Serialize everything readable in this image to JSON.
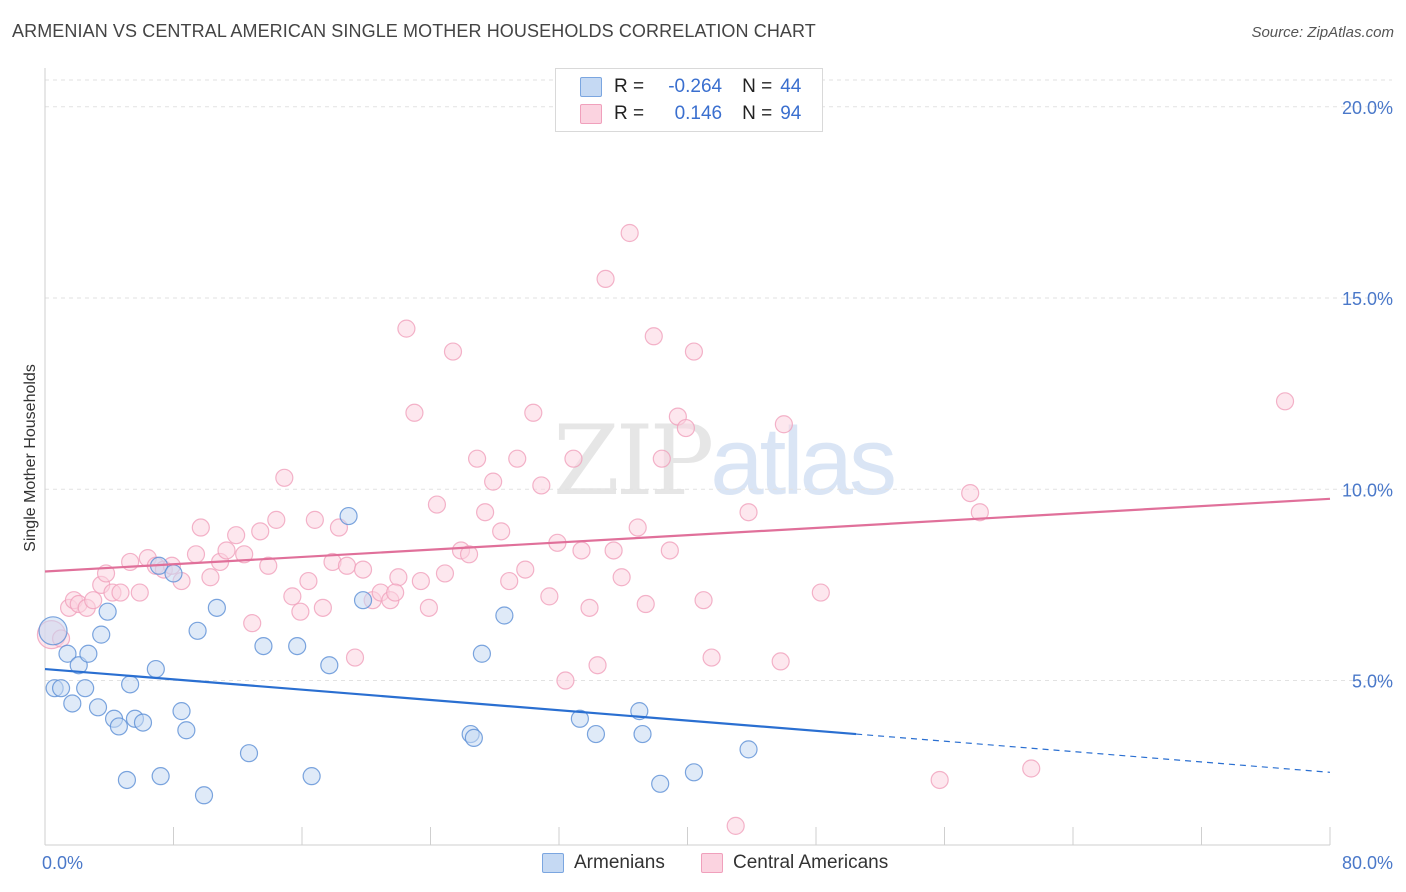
{
  "title": "ARMENIAN VS CENTRAL AMERICAN SINGLE MOTHER HOUSEHOLDS CORRELATION CHART",
  "source": "Source: ZipAtlas.com",
  "watermark": {
    "zip": "ZIP",
    "atlas": "atlas"
  },
  "legend": {
    "rows": [
      {
        "r_label": "R =",
        "r_value": "-0.264",
        "n_label": "N =",
        "n_value": "44",
        "color": "#7ba6e0",
        "fill": "#c5d9f3"
      },
      {
        "r_label": "R =",
        "r_value": "0.146",
        "n_label": "N =",
        "n_value": "94",
        "color": "#f0a0bc",
        "fill": "#fbd3e0"
      }
    ]
  },
  "bottom_legend": [
    {
      "label": "Armenians",
      "color": "#7ba6e0",
      "fill": "#c5d9f3"
    },
    {
      "label": "Central Americans",
      "color": "#f0a0bc",
      "fill": "#fbd3e0"
    }
  ],
  "chart_data": {
    "type": "scatter",
    "title": "ARMENIAN VS CENTRAL AMERICAN SINGLE MOTHER HOUSEHOLDS CORRELATION CHART",
    "ylabel": "Single Mother Households",
    "xlabel": "",
    "x_tick_labels": [
      "0.0%",
      "80.0%"
    ],
    "y_tick_labels": [
      "5.0%",
      "10.0%",
      "15.0%",
      "20.0%"
    ],
    "xlim": [
      0,
      80
    ],
    "ylim": [
      0.7,
      20.7
    ],
    "y_ticks": [
      5,
      10,
      15,
      20
    ],
    "grid": true,
    "series": [
      {
        "name": "Armenians",
        "color": "#5b8fd6",
        "fill": "#c5d9f3",
        "trend_color": "#2a6fd1",
        "trend": {
          "x0": 0,
          "y0": 5.3,
          "x1": 50.5,
          "y1": 3.6,
          "dash_to_x": 80,
          "dash_to_y": 2.6
        },
        "points": [
          [
            0.5,
            6.3
          ],
          [
            0.6,
            4.8
          ],
          [
            1.0,
            4.8
          ],
          [
            1.4,
            5.7
          ],
          [
            1.7,
            4.4
          ],
          [
            2.1,
            5.4
          ],
          [
            2.5,
            4.8
          ],
          [
            2.7,
            5.7
          ],
          [
            3.3,
            4.3
          ],
          [
            3.5,
            6.2
          ],
          [
            3.9,
            6.8
          ],
          [
            4.3,
            4.0
          ],
          [
            4.6,
            3.8
          ],
          [
            5.1,
            2.4
          ],
          [
            5.3,
            4.9
          ],
          [
            5.6,
            4.0
          ],
          [
            6.1,
            3.9
          ],
          [
            6.9,
            5.3
          ],
          [
            7.1,
            8.0
          ],
          [
            7.2,
            2.5
          ],
          [
            8.0,
            7.8
          ],
          [
            8.5,
            4.2
          ],
          [
            8.8,
            3.7
          ],
          [
            9.5,
            6.3
          ],
          [
            9.9,
            2.0
          ],
          [
            10.7,
            6.9
          ],
          [
            12.7,
            3.1
          ],
          [
            13.6,
            5.9
          ],
          [
            15.7,
            5.9
          ],
          [
            16.6,
            2.5
          ],
          [
            17.7,
            5.4
          ],
          [
            18.9,
            9.3
          ],
          [
            19.8,
            7.1
          ],
          [
            26.5,
            3.6
          ],
          [
            26.7,
            3.5
          ],
          [
            27.2,
            5.7
          ],
          [
            28.6,
            6.7
          ],
          [
            33.3,
            4.0
          ],
          [
            34.3,
            3.6
          ],
          [
            37.0,
            4.2
          ],
          [
            37.2,
            3.6
          ],
          [
            38.3,
            2.3
          ],
          [
            40.4,
            2.6
          ],
          [
            43.8,
            3.2
          ]
        ]
      },
      {
        "name": "Central Americans",
        "color": "#f0a0bc",
        "fill": "#fbd3e0",
        "trend_color": "#e0709a",
        "trend": {
          "x0": 0,
          "y0": 7.85,
          "x1": 80,
          "y1": 9.75
        },
        "points": [
          [
            0.4,
            6.2
          ],
          [
            1.0,
            6.1
          ],
          [
            1.5,
            6.9
          ],
          [
            1.8,
            7.1
          ],
          [
            2.1,
            7.0
          ],
          [
            2.6,
            6.9
          ],
          [
            3.0,
            7.1
          ],
          [
            3.5,
            7.5
          ],
          [
            3.8,
            7.8
          ],
          [
            4.2,
            7.3
          ],
          [
            4.7,
            7.3
          ],
          [
            5.3,
            8.1
          ],
          [
            5.9,
            7.3
          ],
          [
            6.4,
            8.2
          ],
          [
            6.9,
            8.0
          ],
          [
            7.4,
            7.9
          ],
          [
            7.9,
            8.0
          ],
          [
            8.5,
            7.6
          ],
          [
            9.4,
            8.3
          ],
          [
            9.7,
            9.0
          ],
          [
            10.3,
            7.7
          ],
          [
            10.9,
            8.1
          ],
          [
            11.3,
            8.4
          ],
          [
            11.9,
            8.8
          ],
          [
            12.4,
            8.3
          ],
          [
            12.9,
            6.5
          ],
          [
            13.4,
            8.9
          ],
          [
            13.9,
            8.0
          ],
          [
            14.4,
            9.2
          ],
          [
            14.9,
            10.3
          ],
          [
            15.4,
            7.2
          ],
          [
            15.9,
            6.8
          ],
          [
            16.4,
            7.6
          ],
          [
            16.8,
            9.2
          ],
          [
            17.3,
            6.9
          ],
          [
            17.9,
            8.1
          ],
          [
            18.3,
            9.0
          ],
          [
            18.8,
            8.0
          ],
          [
            19.3,
            5.6
          ],
          [
            19.8,
            7.9
          ],
          [
            20.4,
            7.1
          ],
          [
            20.9,
            7.3
          ],
          [
            21.5,
            7.1
          ],
          [
            22.0,
            7.7
          ],
          [
            22.5,
            14.2
          ],
          [
            23.0,
            12.0
          ],
          [
            23.4,
            7.6
          ],
          [
            23.9,
            6.9
          ],
          [
            24.4,
            9.6
          ],
          [
            24.9,
            7.8
          ],
          [
            25.4,
            13.6
          ],
          [
            25.9,
            8.4
          ],
          [
            26.4,
            8.3
          ],
          [
            26.9,
            10.8
          ],
          [
            27.4,
            9.4
          ],
          [
            27.9,
            10.2
          ],
          [
            28.4,
            8.9
          ],
          [
            28.9,
            7.6
          ],
          [
            29.4,
            10.8
          ],
          [
            29.9,
            7.9
          ],
          [
            30.4,
            12.0
          ],
          [
            30.9,
            10.1
          ],
          [
            31.4,
            7.2
          ],
          [
            31.9,
            8.6
          ],
          [
            32.4,
            5.0
          ],
          [
            32.9,
            10.8
          ],
          [
            33.4,
            8.4
          ],
          [
            33.9,
            6.9
          ],
          [
            34.4,
            5.4
          ],
          [
            34.9,
            15.5
          ],
          [
            35.4,
            8.4
          ],
          [
            35.9,
            7.7
          ],
          [
            36.4,
            16.7
          ],
          [
            36.9,
            9.0
          ],
          [
            37.4,
            7.0
          ],
          [
            37.9,
            14.0
          ],
          [
            38.4,
            10.8
          ],
          [
            38.9,
            8.4
          ],
          [
            39.4,
            11.9
          ],
          [
            39.9,
            11.6
          ],
          [
            40.4,
            13.6
          ],
          [
            41.0,
            7.1
          ],
          [
            41.5,
            5.6
          ],
          [
            43.0,
            1.2
          ],
          [
            43.8,
            9.4
          ],
          [
            45.8,
            5.5
          ],
          [
            46.0,
            11.7
          ],
          [
            48.3,
            7.3
          ],
          [
            55.7,
            2.4
          ],
          [
            57.6,
            9.9
          ],
          [
            58.2,
            9.4
          ],
          [
            61.4,
            2.7
          ],
          [
            77.2,
            12.3
          ],
          [
            21.8,
            7.3
          ]
        ]
      }
    ]
  }
}
